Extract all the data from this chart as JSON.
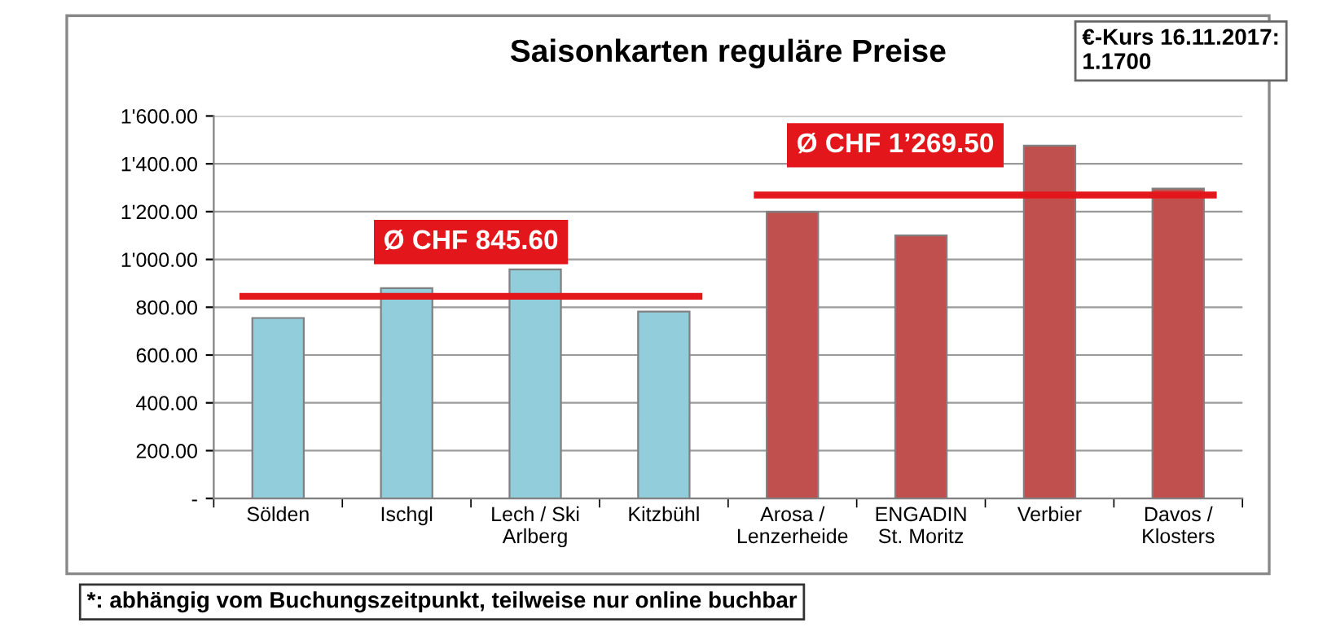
{
  "chart_data": {
    "type": "bar",
    "title": "Saisonkarten reguläre Preise",
    "categories": [
      "Sölden",
      "Ischgl",
      "Lech / Ski\nArlberg",
      "Kitzbühl",
      "Arosa /\nLenzerheide",
      "ENGADIN\nSt. Moritz",
      "Verbier",
      "Davos /\nKlosters"
    ],
    "values": [
      755,
      880,
      958,
      782,
      1199,
      1100,
      1476,
      1296
    ],
    "colors": [
      "#92cddc",
      "#92cddc",
      "#92cddc",
      "#92cddc",
      "#c0504d",
      "#c0504d",
      "#c0504d",
      "#c0504d"
    ],
    "ylim": [
      0,
      1600
    ],
    "yticks": [
      {
        "value": 0,
        "label": "-"
      },
      {
        "value": 200,
        "label": "200.00"
      },
      {
        "value": 400,
        "label": "400.00"
      },
      {
        "value": 600,
        "label": "600.00"
      },
      {
        "value": 800,
        "label": "800.00"
      },
      {
        "value": 1000,
        "label": "1'000.00"
      },
      {
        "value": 1200,
        "label": "1'200.00"
      },
      {
        "value": 1400,
        "label": "1'400.00"
      },
      {
        "value": 1600,
        "label": "1'600.00"
      }
    ],
    "grid": "y",
    "ref_lines": [
      {
        "axis": "y",
        "value": 845.6,
        "label": "Ø CHF 845.60",
        "color": "#e3161b"
      },
      {
        "axis": "y",
        "value": 1269.5,
        "label": "Ø CHF 1’269.50",
        "color": "#e3161b"
      }
    ],
    "annotations": [
      "€-Kurs 16.11.2017:\n1.1700",
      "*: abhängig vom Buchungszeitpunkt, teilweise nur online buchbar"
    ]
  }
}
